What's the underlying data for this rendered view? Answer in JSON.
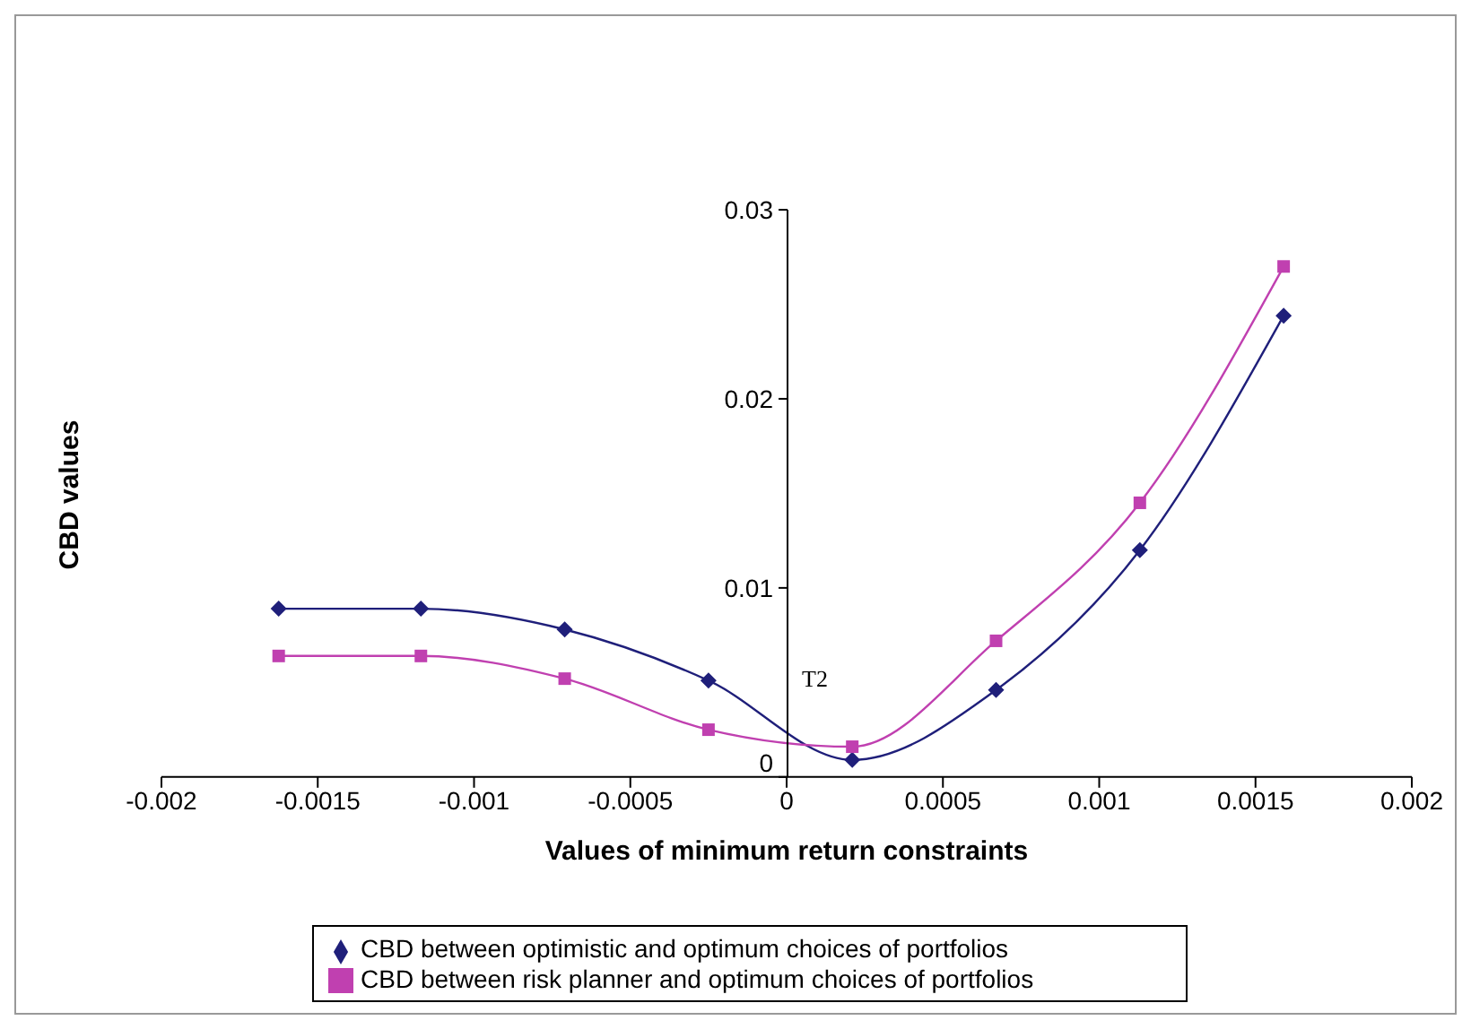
{
  "chart_data": {
    "type": "line",
    "xlabel": "Values of minimum return constraints",
    "ylabel": "CBD values",
    "x": [
      -0.001625,
      -0.00117,
      -0.00071,
      -0.00025,
      0.00021,
      0.00067,
      0.00113,
      0.00159
    ],
    "series": [
      {
        "name": "CBD between optimistic and optimum choices of portfolios",
        "color": "#1f1f7a",
        "marker": "diamond",
        "values": [
          0.0089,
          0.0089,
          0.0078,
          0.0051,
          0.0009,
          0.0046,
          0.012,
          0.0244
        ]
      },
      {
        "name": "CBD between risk planner and optimum choices of portfolios",
        "color": "#c040b0",
        "marker": "square",
        "values": [
          0.0064,
          0.0064,
          0.0052,
          0.0025,
          0.0016,
          0.0072,
          0.0145,
          0.027
        ]
      }
    ],
    "xlim": [
      -0.002,
      0.002
    ],
    "xticks": [
      -0.002,
      -0.0015,
      -0.001,
      -0.0005,
      0,
      0.0005,
      0.001,
      0.0015,
      0.002
    ],
    "ylim": [
      0,
      0.03
    ],
    "yticks": [
      0,
      0.01,
      0.02,
      0.03
    ],
    "annotations": [
      "T2"
    ],
    "grid": false,
    "legend": "bottom",
    "line_style": "solid"
  }
}
